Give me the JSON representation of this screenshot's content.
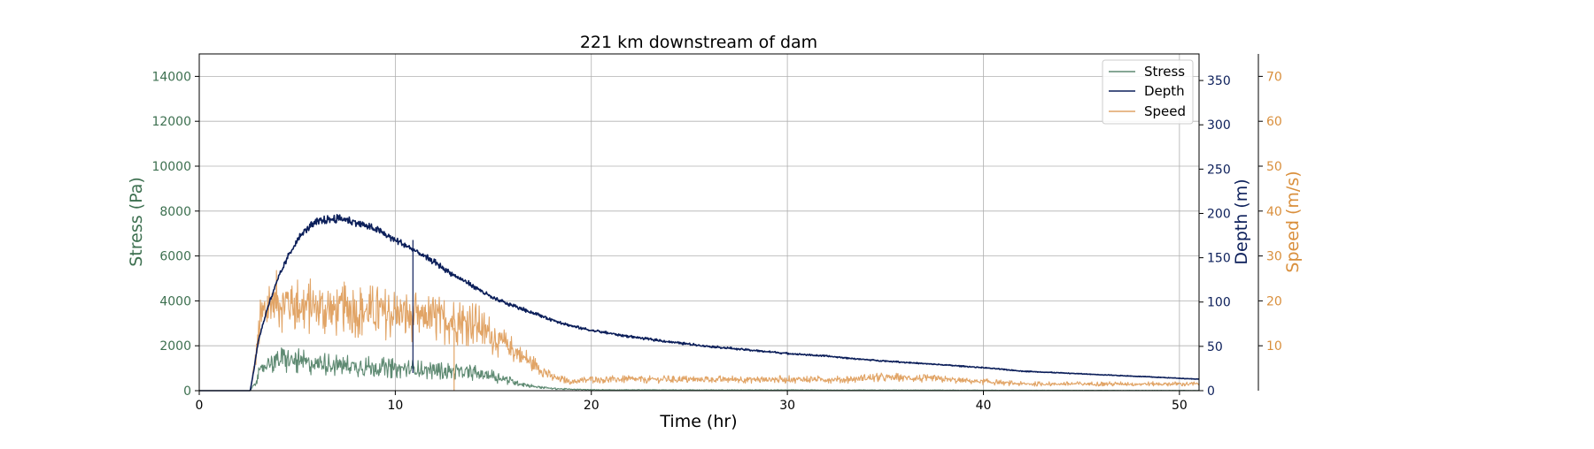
{
  "chart_data": {
    "type": "line",
    "title": "221 km downstream of dam",
    "xlabel": "Time (hr)",
    "xlim": [
      0,
      51
    ],
    "xticks": [
      0,
      10,
      20,
      30,
      40,
      50
    ],
    "grid": true,
    "legend_position": "top-right",
    "axes": {
      "stress": {
        "label": "Stress (Pa)",
        "lim": [
          0,
          15000
        ],
        "ticks": [
          0,
          2000,
          4000,
          6000,
          8000,
          10000,
          12000,
          14000
        ],
        "color": "#3d7050"
      },
      "depth": {
        "label": "Depth (m)",
        "lim": [
          0,
          380
        ],
        "ticks": [
          0,
          50,
          100,
          150,
          200,
          250,
          300,
          350
        ],
        "color": "#0c1f5a"
      },
      "speed": {
        "label": "Speed (m/s)",
        "lim": [
          0,
          75
        ],
        "ticks": [
          10,
          20,
          30,
          40,
          50,
          60,
          70
        ],
        "color": "#d98f3c"
      }
    },
    "series": [
      {
        "name": "Stress",
        "axis": "stress",
        "color": "#5e8a72",
        "x": [
          0,
          2.6,
          2.8,
          3.2,
          3.6,
          4.0,
          4.5,
          5.0,
          6.0,
          7.0,
          8.0,
          9.0,
          10.0,
          11.0,
          12.0,
          13.0,
          14.0,
          15.0,
          16.0,
          17.0,
          18.0,
          19.0,
          20.0,
          25.0,
          30.0,
          35.0,
          40.0,
          45.0,
          51.0
        ],
        "y": [
          0,
          0,
          300,
          1000,
          1300,
          1350,
          1350,
          1300,
          1200,
          1150,
          1100,
          1050,
          1000,
          950,
          900,
          850,
          800,
          650,
          400,
          200,
          100,
          60,
          40,
          30,
          30,
          25,
          20,
          15,
          10
        ]
      },
      {
        "name": "Depth",
        "axis": "depth",
        "color": "#0c1f5a",
        "x": [
          0,
          2.6,
          2.8,
          3.0,
          3.5,
          4.0,
          4.5,
          5.0,
          5.5,
          6.0,
          6.5,
          7.0,
          7.5,
          8.0,
          9.0,
          10.0,
          11.0,
          12.0,
          13.0,
          14.0,
          15.0,
          16.0,
          17.0,
          18.0,
          19.0,
          20.0,
          22.0,
          24.0,
          26.0,
          28.0,
          30.0,
          32.0,
          34.0,
          36.0,
          38.0,
          40.0,
          42.0,
          44.0,
          46.0,
          48.0,
          50.0,
          51.0
        ],
        "y": [
          0,
          0,
          25,
          55,
          95,
          125,
          150,
          170,
          183,
          190,
          193,
          194,
          193,
          190,
          182,
          170,
          158,
          145,
          130,
          118,
          104,
          96,
          88,
          80,
          73,
          68,
          61,
          55,
          50,
          46,
          42,
          39,
          35,
          32,
          29,
          26,
          22,
          20,
          18,
          16,
          14,
          13
        ]
      },
      {
        "name": "Speed",
        "axis": "speed",
        "color": "#e1a466",
        "x": [
          0,
          2.6,
          2.8,
          3.1,
          3.5,
          4.0,
          5.0,
          6.0,
          7.0,
          8.0,
          9.0,
          10.0,
          11.0,
          12.0,
          13.0,
          14.0,
          15.0,
          16.0,
          17.0,
          18.0,
          19.0,
          20.0,
          22.0,
          24.0,
          26.0,
          28.0,
          30.0,
          33.0,
          35.0,
          38.0,
          40.0,
          42.0,
          44.0,
          46.0,
          48.0,
          51.0
        ],
        "y": [
          0,
          0,
          5,
          15,
          19,
          20,
          19,
          18.5,
          18,
          18,
          17.5,
          17,
          16.5,
          16,
          15.5,
          15,
          12,
          9,
          6,
          3,
          2,
          2.5,
          2.5,
          2.5,
          2.5,
          2.5,
          2.5,
          2.5,
          3,
          2.5,
          2,
          1.5,
          1.5,
          1.5,
          1.5,
          1.5
        ]
      }
    ],
    "annotations": [
      {
        "series": "Depth",
        "x": 10.9,
        "y_from": 20,
        "y_to": 170
      },
      {
        "series": "Speed",
        "x": 13.0,
        "y_from": 0,
        "y_to": 14
      }
    ]
  }
}
